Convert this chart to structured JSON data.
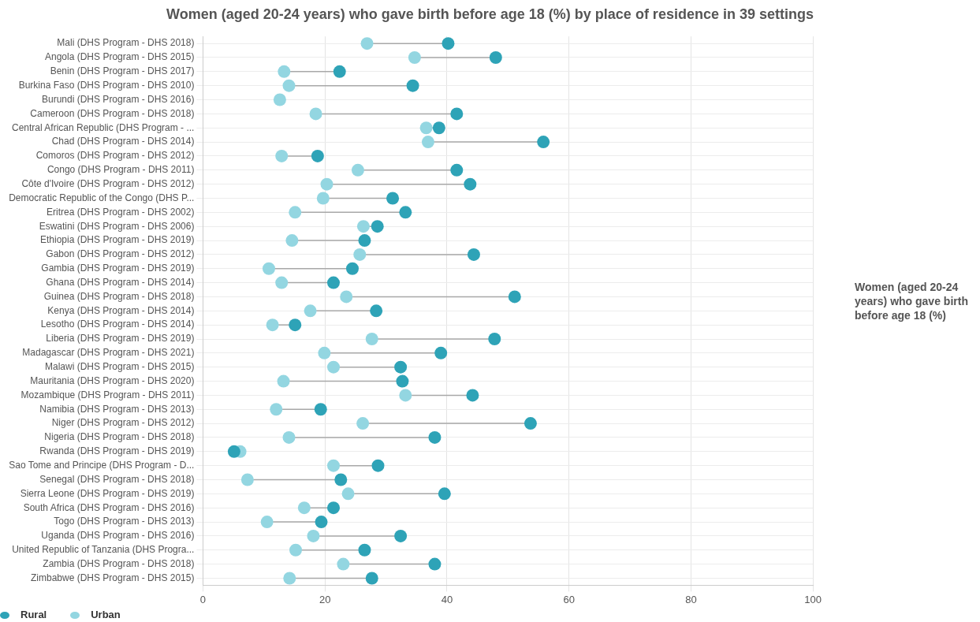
{
  "chart_data": {
    "type": "scatter",
    "orientation": "horizontal",
    "title": "Women (aged 20-24 years) who gave birth before age 18 (%) by place of residence in 39 settings",
    "categories": [
      "Mali (DHS Program - DHS 2018)",
      "Angola (DHS Program - DHS 2015)",
      "Benin (DHS Program - DHS 2017)",
      "Burkina Faso (DHS Program - DHS 2010)",
      "Burundi (DHS Program - DHS 2016)",
      "Cameroon (DHS Program - DHS 2018)",
      "Central African Republic (DHS Program - ...",
      "Chad (DHS Program - DHS 2014)",
      "Comoros (DHS Program - DHS 2012)",
      "Congo (DHS Program - DHS 2011)",
      "Côte d'Ivoire (DHS Program - DHS 2012)",
      "Democratic Republic of the Congo (DHS P...",
      "Eritrea (DHS Program - DHS 2002)",
      "Eswatini (DHS Program - DHS 2006)",
      "Ethiopia (DHS Program - DHS 2019)",
      "Gabon (DHS Program - DHS 2012)",
      "Gambia (DHS Program - DHS 2019)",
      "Ghana (DHS Program - DHS 2014)",
      "Guinea (DHS Program - DHS 2018)",
      "Kenya (DHS Program - DHS 2014)",
      "Lesotho (DHS Program - DHS 2014)",
      "Liberia (DHS Program - DHS 2019)",
      "Madagascar (DHS Program - DHS 2021)",
      "Malawi (DHS Program - DHS 2015)",
      "Mauritania (DHS Program - DHS 2020)",
      "Mozambique (DHS Program - DHS 2011)",
      "Namibia (DHS Program - DHS 2013)",
      "Niger (DHS Program - DHS 2012)",
      "Nigeria (DHS Program - DHS 2018)",
      "Rwanda (DHS Program - DHS 2019)",
      "Sao Tome and Principe (DHS Program - D...",
      "Senegal (DHS Program - DHS 2018)",
      "Sierra Leone (DHS Program - DHS 2019)",
      "South Africa (DHS Program - DHS 2016)",
      "Togo (DHS Program - DHS 2013)",
      "Uganda (DHS Program - DHS 2016)",
      "United Republic of Tanzania (DHS Progra...",
      "Zambia (DHS Program - DHS 2018)",
      "Zimbabwe (DHS Program - DHS 2015)"
    ],
    "series": [
      {
        "name": "Rural",
        "color": "#2ea3b7",
        "values": [
          40.2,
          48.0,
          22.4,
          34.4,
          null,
          41.6,
          38.7,
          55.8,
          18.8,
          41.6,
          43.8,
          31.1,
          33.2,
          28.6,
          26.5,
          44.4,
          24.5,
          21.4,
          51.1,
          28.4,
          15.1,
          47.8,
          39.0,
          32.4,
          32.7,
          44.2,
          19.3,
          53.7,
          38.0,
          5.1,
          28.7,
          22.6,
          39.6,
          21.4,
          19.4,
          32.4,
          26.5,
          38.0,
          27.7
        ]
      },
      {
        "name": "Urban",
        "color": "#93d6e1",
        "values": [
          26.9,
          34.7,
          13.3,
          14.1,
          12.6,
          18.5,
          36.6,
          36.9,
          12.9,
          25.4,
          20.3,
          19.7,
          15.1,
          26.3,
          14.6,
          25.7,
          10.8,
          12.9,
          23.5,
          17.6,
          11.4,
          27.7,
          19.9,
          21.4,
          13.2,
          33.2,
          12.0,
          26.2,
          14.1,
          6.1,
          21.4,
          7.3,
          23.8,
          16.6,
          10.5,
          18.1,
          15.2,
          23.0,
          14.2
        ]
      }
    ],
    "xlim": [
      0,
      100
    ],
    "xticks": [
      0,
      20,
      40,
      60,
      80,
      100
    ],
    "grid": true,
    "legend": "bottom left",
    "marker": "circle",
    "annotations": [
      "Women (aged 20-24 years) who gave birth before age 18 (%)"
    ]
  }
}
